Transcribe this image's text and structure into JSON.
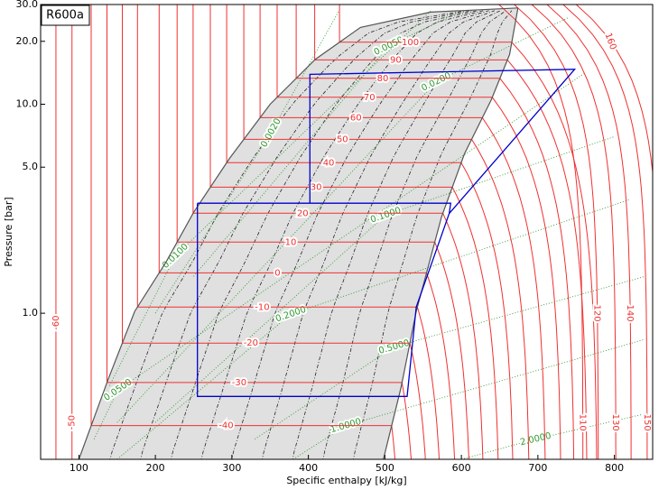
{
  "chart_data": {
    "type": "ph_diagram",
    "title": "R600a",
    "xlabel": "Specific enthalpy [kJ/kg]",
    "ylabel": "Pressure [bar]",
    "xlim": [
      50,
      850
    ],
    "ylim": [
      0.2,
      30
    ],
    "log_y": true,
    "xticks": [
      100,
      200,
      300,
      400,
      500,
      600,
      700,
      800
    ],
    "yticks": [
      {
        "value": 1,
        "label": "1.0"
      },
      {
        "value": 5,
        "label": "5.0"
      },
      {
        "value": 10,
        "label": "10.0"
      },
      {
        "value": 20,
        "label": "20.0"
      },
      {
        "value": 30,
        "label": "30.0"
      }
    ],
    "dome_color": "#e0e0e0",
    "isotherm_color": "#f03030",
    "density_color": "#2e9a2e",
    "cycle_color": "#0000cc",
    "saturation": {
      "liquid": {
        "h": [
          100,
          138,
          173,
          214,
          250,
          297,
          350,
          409,
          468,
          560,
          674
        ],
        "p": [
          0.2,
          0.48,
          1.02,
          1.76,
          3.04,
          5.51,
          10.0,
          16.4,
          23.3,
          27.6,
          28.9
        ]
      },
      "vapor": {
        "h": [
          498,
          521,
          541,
          574,
          604,
          639,
          663,
          674
        ],
        "p": [
          0.2,
          0.44,
          1.02,
          2.89,
          5.79,
          10.5,
          17.3,
          28.9
        ]
      }
    },
    "quality_lines": [
      0.1,
      0.2,
      0.3,
      0.4,
      0.5,
      0.6,
      0.7,
      0.8,
      0.9
    ],
    "isotherms": [
      {
        "T": -40,
        "p": 0.29
      },
      {
        "T": -30,
        "p": 0.466
      },
      {
        "T": -20,
        "p": 0.72
      },
      {
        "T": -10,
        "p": 1.07
      },
      {
        "T": 0,
        "p": 1.56
      },
      {
        "T": 10,
        "p": 2.19
      },
      {
        "T": 20,
        "p": 3.01
      },
      {
        "T": 30,
        "p": 4.01
      },
      {
        "T": 40,
        "p": 5.25
      },
      {
        "T": 50,
        "p": 6.79
      },
      {
        "T": 60,
        "p": 8.62
      },
      {
        "T": 70,
        "p": 10.8
      },
      {
        "T": 80,
        "p": 13.3
      },
      {
        "T": 90,
        "p": 16.3
      },
      {
        "T": 100,
        "p": 19.8
      }
    ],
    "liquid_isotherms": [
      {
        "T": -60,
        "h": 70
      },
      {
        "T": -50,
        "h": 91
      }
    ],
    "vapor_isotherms": [
      {
        "T": 110,
        "h": 759
      },
      {
        "T": 120,
        "h": 779
      },
      {
        "T": 130,
        "h": 802
      },
      {
        "T": 140,
        "h": 822
      },
      {
        "T": 150,
        "h": 843
      },
      {
        "T": 160,
        "h": 860
      }
    ],
    "density_lines": [
      {
        "label": {
          "value": 0.002,
          "label": "0.0020"
        },
        "h": [
          200,
          351,
          440
        ],
        "p": [
          1.0,
          7.3,
          28
        ]
      },
      {
        "label": {
          "value": 0.005,
          "label": "0.0050"
        },
        "h": [
          250,
          505,
          600
        ],
        "p": [
          1.5,
          19,
          28
        ]
      },
      {
        "label": {
          "value": 0.01,
          "label": "0.0100"
        },
        "h": [
          140,
          226,
          560
        ],
        "p": [
          0.45,
          1.88,
          28
        ]
      },
      {
        "label": {
          "value": 0.02,
          "label": "0.0200"
        },
        "h": [
          150,
          567,
          740
        ],
        "p": [
          0.3,
          12.8,
          26
        ]
      },
      {
        "label": {
          "value": 0.05,
          "label": "0.0500"
        },
        "h": [
          120,
          151,
          760
        ],
        "p": [
          0.25,
          0.43,
          14
        ]
      },
      {
        "label": {
          "value": 0.1,
          "label": "0.1000"
        },
        "h": [
          200,
          501,
          800
        ],
        "p": [
          0.3,
          2.95,
          7
        ]
      },
      {
        "label": {
          "value": 0.2,
          "label": "0.2000"
        },
        "h": [
          150,
          377,
          820
        ],
        "p": [
          0.2,
          0.99,
          3.5
        ]
      },
      {
        "label": {
          "value": 0.5,
          "label": "0.5000"
        },
        "h": [
          330,
          512,
          840
        ],
        "p": [
          0.25,
          0.69,
          1.5
        ]
      },
      {
        "label": {
          "value": 1,
          "label": "1.0000"
        },
        "h": [
          380,
          449,
          840
        ],
        "p": [
          0.2,
          0.29,
          0.75
        ]
      },
      {
        "label": {
          "value": 2,
          "label": "2.0000"
        },
        "h": [
          600,
          697,
          840
        ],
        "p": [
          0.2,
          0.25,
          0.33
        ]
      }
    ],
    "cycle": [
      {
        "h": [
          255,
          586,
          584,
          541,
          529,
          255,
          255
        ],
        "p": [
          3.36,
          3.36,
          3.0,
          1.07,
          0.4,
          0.4,
          3.36
        ]
      },
      {
        "h": [
          402,
          402,
          748,
          584
        ],
        "p": [
          3.36,
          13.9,
          14.7,
          3.0
        ]
      }
    ]
  }
}
